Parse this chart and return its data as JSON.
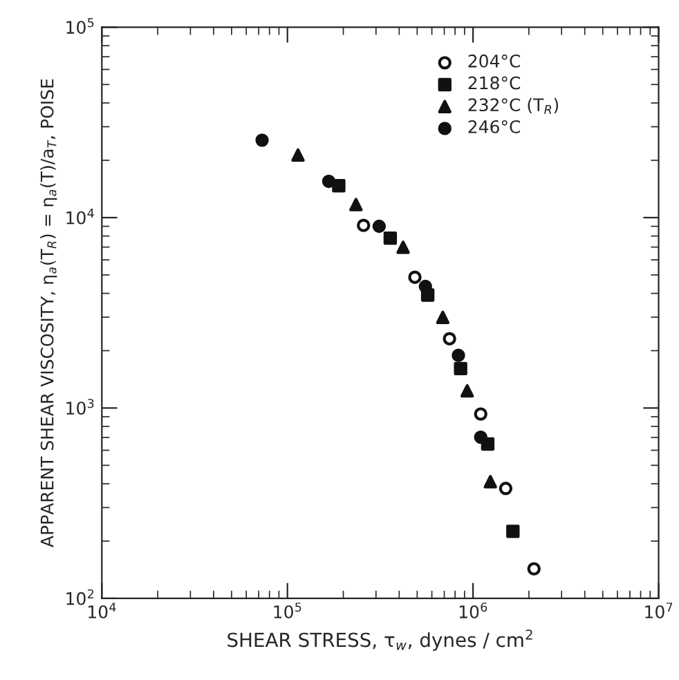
{
  "chart_data": {
    "type": "scatter",
    "xlabel": "SHEAR STRESS, τ$_{w}$, dynes / cm$^{2}$",
    "ylabel": "APPARENT SHEAR VISCOSITY, η$_{a}$(T$_{R}$) = η$_{a}$(T)/a$_{T}$, POISE",
    "log": "xy",
    "grid": false,
    "legend": "top right",
    "xlim": [
      10000,
      10000000
    ],
    "ylim": [
      100,
      100000
    ],
    "xticks": [
      {
        "value": 10000,
        "label": "10$^{4}$"
      },
      {
        "value": 100000,
        "label": "10$^{5}$"
      },
      {
        "value": 1000000,
        "label": "10$^{6}$"
      },
      {
        "value": 10000000,
        "label": "10$^{7}$"
      }
    ],
    "yticks": [
      {
        "value": 100,
        "label": "10$^{2}$"
      },
      {
        "value": 1000,
        "label": "10$^{3}$"
      },
      {
        "value": 10000,
        "label": "10$^{4}$"
      },
      {
        "value": 100000,
        "label": "10$^{5}$"
      }
    ],
    "series": [
      {
        "name": "204°C",
        "color": "#ffffff",
        "marker": "circle",
        "x": [
          257000,
          486000,
          747000,
          1100000,
          1500000,
          2130000
        ],
        "values": [
          9100,
          4860,
          2310,
          930,
          378,
          143
        ]
      },
      {
        "name": "218°C",
        "color": "#111111",
        "marker": "square",
        "x": [
          189000,
          358000,
          570000,
          857000,
          1200000,
          1640000
        ],
        "values": [
          14700,
          7800,
          3920,
          1610,
          647,
          225
        ]
      },
      {
        "name": "232°C (T$_{R}$)",
        "color": "#111111",
        "marker": "triangle",
        "x": [
          114000,
          234000,
          420000,
          687000,
          930000,
          1240000
        ],
        "values": [
          21300,
          11700,
          6980,
          2990,
          1230,
          410
        ]
      },
      {
        "name": "246°C",
        "color": "#111111",
        "marker": "circle",
        "x": [
          73000,
          167000,
          312000,
          554000,
          834000,
          1100000
        ],
        "values": [
          25500,
          15500,
          9000,
          4350,
          1890,
          703
        ]
      }
    ]
  }
}
